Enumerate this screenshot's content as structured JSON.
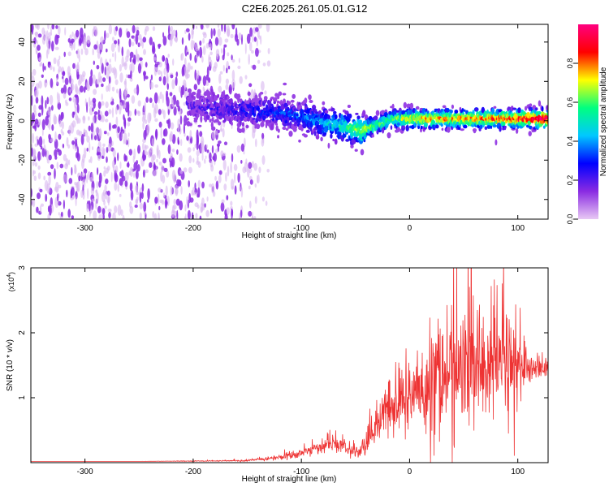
{
  "title": "C2E6.2025.261.05.01.G12",
  "colors": {
    "snr_line": "#ee3333",
    "axis": "#000000",
    "cmap_stops": [
      "#e8c8f4",
      "#8a2be2",
      "#0000ff",
      "#00c8ff",
      "#00ff80",
      "#ffff00",
      "#ff0000",
      "#ff0080"
    ]
  },
  "chart_data": [
    {
      "type": "heatmap",
      "title": "C2E6.2025.261.05.01.G12",
      "xlabel": "Height of straight line (km)",
      "ylabel": "Frequency (Hz)",
      "xlim": [
        -350,
        128
      ],
      "ylim": [
        -50,
        49
      ],
      "x_ticks": [
        -300,
        -200,
        -100,
        0,
        100
      ],
      "y_ticks": [
        -40,
        -20,
        0,
        20,
        40
      ],
      "colorbar": {
        "label": "Normalized spectral amplitude",
        "range": [
          0.0,
          1.0
        ],
        "ticks": [
          0.0,
          0.2,
          0.4,
          0.6,
          0.8
        ]
      },
      "trace": {
        "description": "dominant frequency ridge vs height",
        "x": [
          -205,
          -180,
          -150,
          -120,
          -100,
          -80,
          -60,
          -45,
          -30,
          -15,
          0,
          20,
          50,
          80,
          100,
          128
        ],
        "y": [
          8,
          6,
          5,
          4,
          2,
          -1,
          -3,
          -5,
          -2,
          1,
          1,
          1,
          1,
          1,
          1,
          1
        ],
        "peak_amplitude": [
          0.15,
          0.2,
          0.25,
          0.3,
          0.35,
          0.45,
          0.55,
          0.7,
          0.6,
          0.6,
          0.75,
          0.8,
          0.8,
          0.85,
          0.9,
          1.0
        ]
      },
      "noise_region": {
        "x": [
          -350,
          -130
        ],
        "y": [
          -50,
          49
        ],
        "amplitude": 0.1
      }
    },
    {
      "type": "line",
      "xlabel": "Height of straight line (km)",
      "ylabel": "SNR (10 * v/v)",
      "y_scale_label": "(x10",
      "y_scale_exponent": "4",
      "xlim": [
        -350,
        128
      ],
      "ylim": [
        0,
        3
      ],
      "x_ticks": [
        -300,
        -200,
        -100,
        0,
        100
      ],
      "y_ticks": [
        1,
        2,
        3
      ],
      "series": [
        {
          "name": "SNR",
          "envelope_x": [
            -350,
            -250,
            -150,
            -110,
            -90,
            -70,
            -55,
            -45,
            -30,
            -15,
            0,
            20,
            40,
            60,
            80,
            100,
            110,
            128
          ],
          "envelope_y": [
            0.02,
            0.02,
            0.03,
            0.1,
            0.2,
            0.3,
            0.2,
            0.15,
            0.6,
            0.9,
            1.0,
            1.2,
            1.4,
            1.5,
            1.55,
            1.5,
            1.45,
            1.45
          ],
          "spread_y": [
            0.0,
            0.0,
            0.01,
            0.05,
            0.08,
            0.1,
            0.1,
            0.1,
            0.3,
            0.5,
            0.6,
            0.8,
            0.9,
            0.9,
            0.9,
            0.8,
            0.2,
            0.1
          ]
        }
      ]
    }
  ]
}
